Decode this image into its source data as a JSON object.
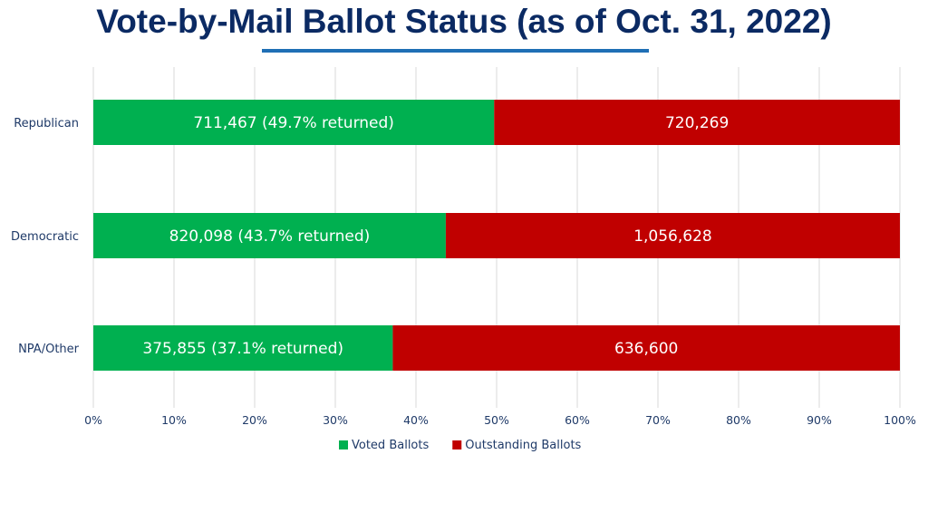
{
  "chart_data": {
    "type": "bar",
    "orientation": "horizontal",
    "stacked": "percent",
    "title": "Vote-by-Mail Ballot Status (as of Oct. 31, 2022)",
    "categories": [
      "Republican",
      "Democratic",
      "NPA/Other"
    ],
    "series": [
      {
        "name": "Voted Ballots",
        "color": "#00b050",
        "values": [
          711467,
          820098,
          375855
        ],
        "data_labels": [
          "711,467 (49.7% returned)",
          "820,098 (43.7% returned)",
          "375,855 (37.1% returned)"
        ]
      },
      {
        "name": "Outstanding Ballots",
        "color": "#c00000",
        "values": [
          720269,
          1056628,
          636600
        ],
        "data_labels": [
          "720,269",
          "1,056,628",
          "636,600"
        ]
      }
    ],
    "x_ticks": [
      "0%",
      "10%",
      "20%",
      "30%",
      "40%",
      "50%",
      "60%",
      "70%",
      "80%",
      "90%",
      "100%"
    ],
    "xlim": [
      0,
      100
    ],
    "grid": true,
    "legend_position": "bottom"
  }
}
